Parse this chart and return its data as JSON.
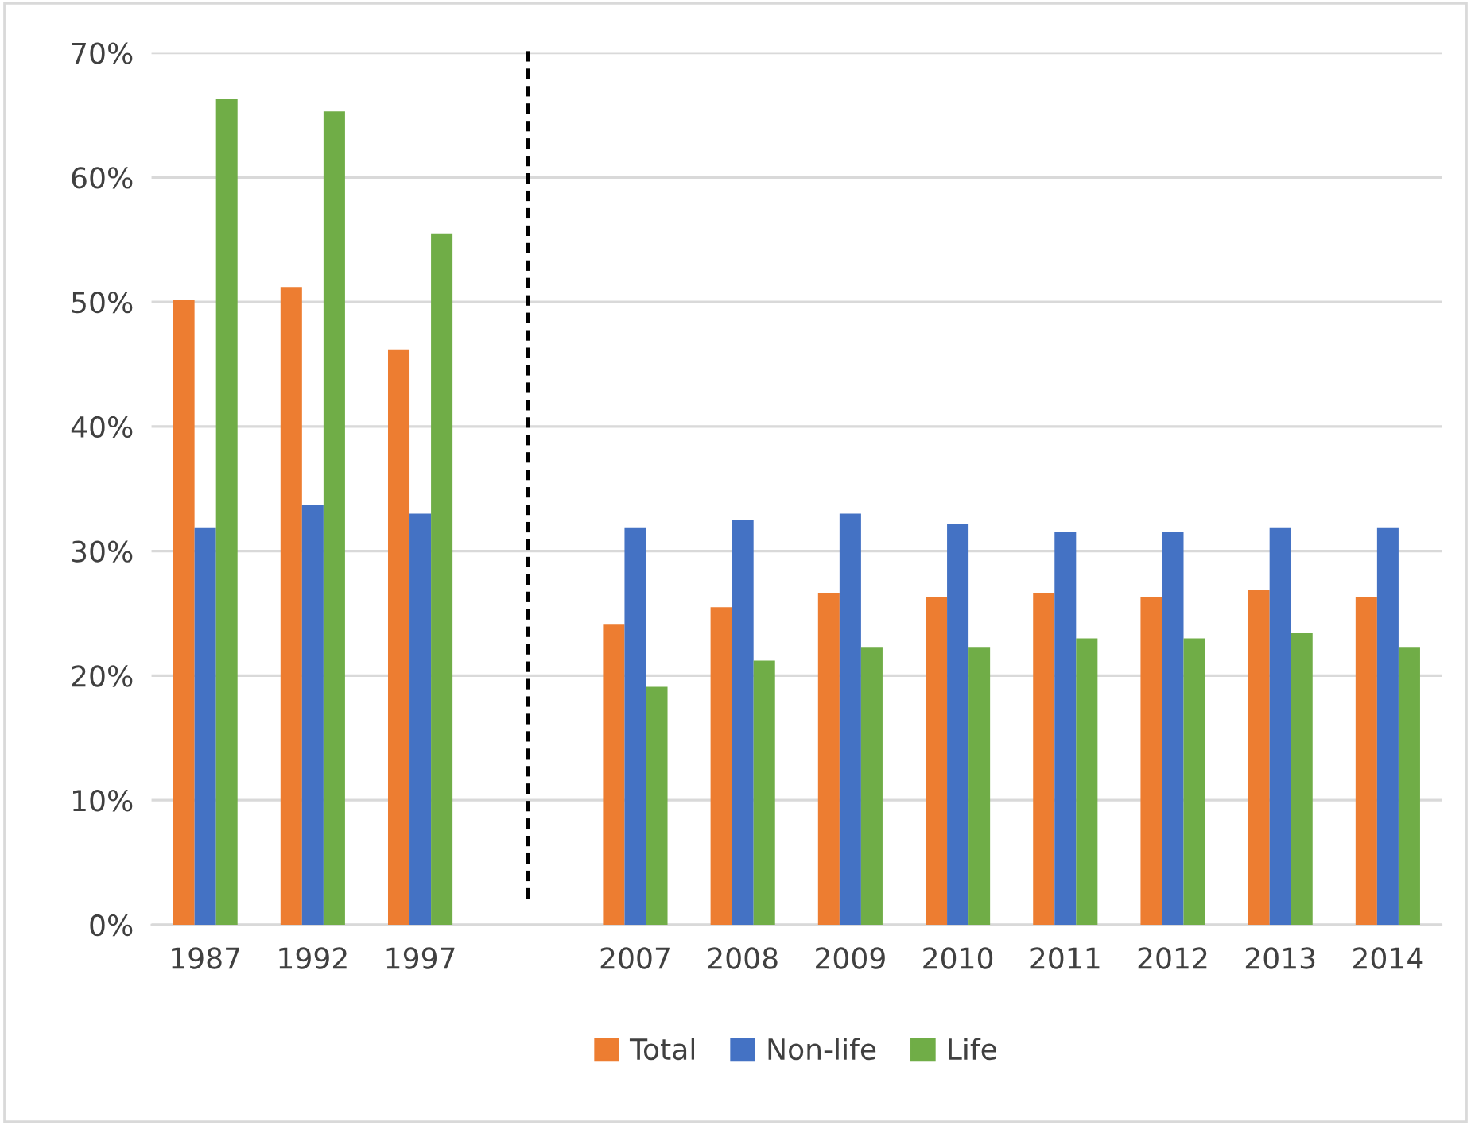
{
  "chart_data": {
    "type": "bar",
    "categories": [
      "1987",
      "1992",
      "1997",
      null,
      "2007",
      "2008",
      "2009",
      "2010",
      "2011",
      "2012",
      "2013",
      "2014"
    ],
    "series": [
      {
        "name": "Total",
        "color": "#ed7d31",
        "values": [
          50.2,
          51.2,
          46.2,
          null,
          24.1,
          25.5,
          26.6,
          26.3,
          26.6,
          26.3,
          26.9,
          26.3
        ]
      },
      {
        "name": "Non-life",
        "color": "#4472c4",
        "values": [
          31.9,
          33.7,
          33.0,
          null,
          31.9,
          32.5,
          33.0,
          32.2,
          31.5,
          31.5,
          31.9,
          31.9
        ]
      },
      {
        "name": "Life",
        "color": "#70ad47",
        "values": [
          66.3,
          65.3,
          55.5,
          null,
          19.1,
          21.2,
          22.3,
          22.3,
          23.0,
          23.0,
          23.4,
          22.3
        ]
      }
    ],
    "ylim": [
      0,
      70
    ],
    "yticks": [
      {
        "value": 0,
        "label": "0%"
      },
      {
        "value": 10,
        "label": "10%"
      },
      {
        "value": 20,
        "label": "20%"
      },
      {
        "value": 30,
        "label": "30%"
      },
      {
        "value": 40,
        "label": "40%"
      },
      {
        "value": 50,
        "label": "50%"
      },
      {
        "value": 60,
        "label": "60%"
      },
      {
        "value": 70,
        "label": "70%"
      }
    ],
    "grid": "y",
    "legend": "bottom"
  }
}
